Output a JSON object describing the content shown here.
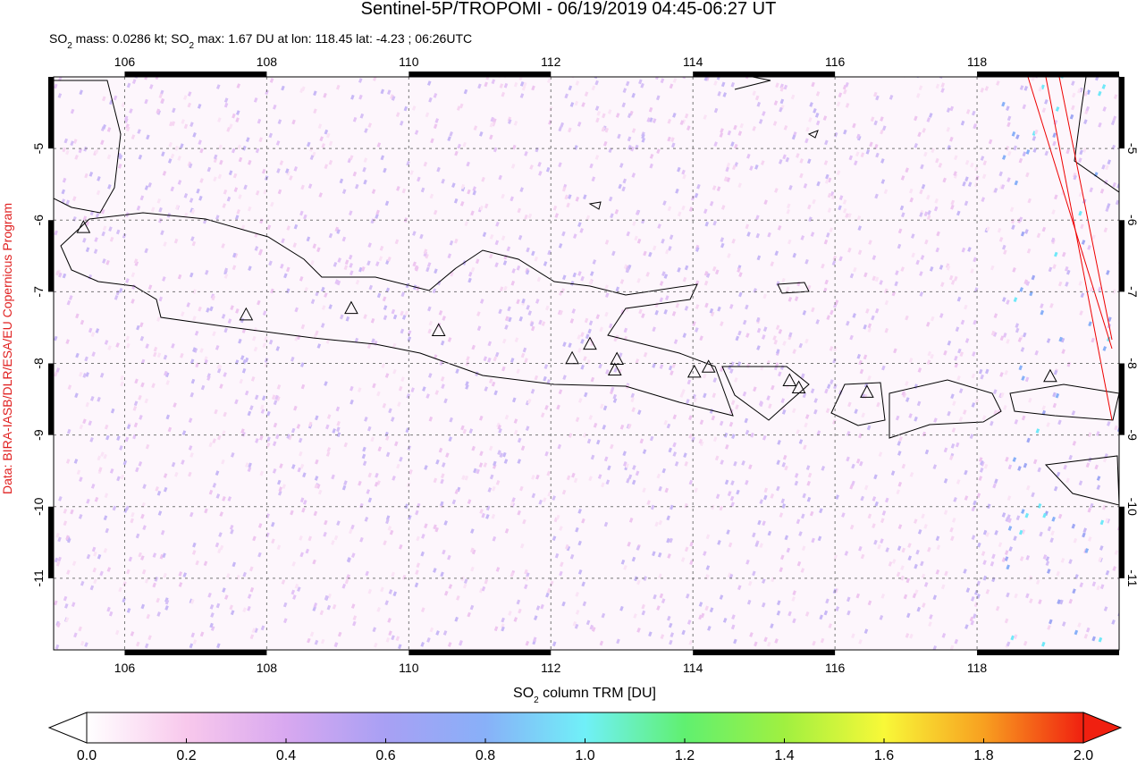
{
  "chart_data": {
    "type": "map",
    "title": "Sentinel-5P/TROPOMI - 06/19/2019 04:45-06:27 UT",
    "subtitle": [
      "SO",
      "2",
      " mass: 0.0286 kt; SO",
      "2",
      " max: 1.67 DU at lon: 118.45 lat: -4.23 ; 06:26UTC"
    ],
    "credit": "Data: BIRA-IASB/DLR/ESA/EU Copernicus Program",
    "xlim": [
      105,
      120
    ],
    "ylim": [
      -12,
      -4
    ],
    "xticks": [
      106,
      108,
      110,
      112,
      114,
      116,
      118
    ],
    "yticks": [
      -5,
      -6,
      -7,
      -8,
      -9,
      -10,
      -11
    ],
    "grid": true,
    "volcanoes": {
      "lon": [
        105.42,
        107.71,
        109.19,
        110.42,
        112.3,
        112.55,
        112.93,
        112.9,
        114.02,
        114.22,
        115.36,
        115.49,
        116.45,
        119.03
      ],
      "lat": [
        -6.11,
        -7.33,
        -7.24,
        -7.55,
        -7.94,
        -7.74,
        -7.95,
        -8.1,
        -8.13,
        -8.06,
        -8.25,
        -8.35,
        -8.41,
        -8.19
      ]
    },
    "colorbar": {
      "label": [
        "SO",
        "2",
        " column TRM [DU]"
      ],
      "range": [
        0,
        2
      ],
      "ticks": [
        {
          "value": 0,
          "label": "0.0"
        },
        {
          "value": 0.2,
          "label": "0.2"
        },
        {
          "value": 0.4,
          "label": "0.4"
        },
        {
          "value": 0.6,
          "label": "0.6"
        },
        {
          "value": 0.8,
          "label": "0.8"
        },
        {
          "value": 1,
          "label": "1.0"
        },
        {
          "value": 1.2,
          "label": "1.2"
        },
        {
          "value": 1.4,
          "label": "1.4"
        },
        {
          "value": 1.6,
          "label": "1.6"
        },
        {
          "value": 1.8,
          "label": "1.8"
        },
        {
          "value": 2,
          "label": "2.0"
        }
      ],
      "colors": [
        "#ffffff",
        "#f8c8ec",
        "#d8a8f0",
        "#a8a0f4",
        "#88b0f8",
        "#70f0f8",
        "#60f070",
        "#a0f040",
        "#f8f838",
        "#f8a020",
        "#f02010"
      ]
    }
  }
}
